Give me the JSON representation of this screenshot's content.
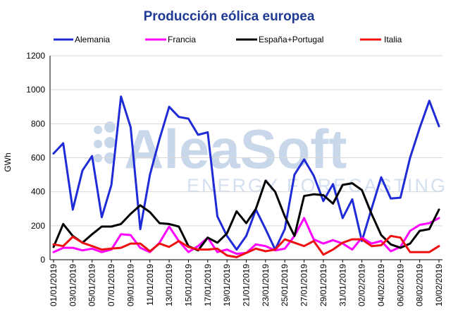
{
  "chart_data": {
    "type": "line",
    "title": "Producción eólica europea",
    "ylabel": "GWh",
    "xlabel": "",
    "ylim": [
      0,
      1200
    ],
    "yticks": [
      0,
      200,
      400,
      600,
      800,
      1000,
      1200
    ],
    "grid": "horizontal",
    "legend_position": "top",
    "watermark": {
      "main": "AleaSoft",
      "sub": "ENERGY FORECASTING"
    },
    "categories": [
      "01/01/2019",
      "02/01/2019",
      "03/01/2019",
      "04/01/2019",
      "05/01/2019",
      "06/01/2019",
      "07/01/2019",
      "08/01/2019",
      "09/01/2019",
      "10/01/2019",
      "11/01/2019",
      "12/01/2019",
      "13/01/2019",
      "14/01/2019",
      "15/01/2019",
      "16/01/2019",
      "17/01/2019",
      "18/01/2019",
      "19/01/2019",
      "20/01/2019",
      "21/01/2019",
      "22/01/2019",
      "23/01/2019",
      "24/01/2019",
      "25/01/2019",
      "26/01/2019",
      "27/01/2019",
      "28/01/2019",
      "29/01/2019",
      "30/01/2019",
      "31/01/2019",
      "01/02/2019",
      "02/02/2019",
      "03/02/2019",
      "04/02/2019",
      "05/02/2019",
      "06/02/2019",
      "07/02/2019",
      "08/02/2019",
      "09/02/2019",
      "10/02/2019"
    ],
    "xtick_labels": [
      "01/01/2019",
      "03/01/2019",
      "05/01/2019",
      "07/01/2019",
      "09/01/2019",
      "11/01/2019",
      "13/01/2019",
      "15/01/2019",
      "17/01/2019",
      "19/01/2019",
      "21/01/2019",
      "23/01/2019",
      "25/01/2019",
      "27/01/2019",
      "29/01/2019",
      "31/01/2019",
      "02/02/2019",
      "04/02/2019",
      "06/02/2019",
      "08/02/2019",
      "10/02/2019"
    ],
    "series": [
      {
        "name": "Alemania",
        "color": "#1f2bd6",
        "values": [
          625,
          685,
          295,
          525,
          610,
          250,
          440,
          960,
          780,
          180,
          500,
          710,
          900,
          840,
          830,
          735,
          750,
          255,
          140,
          60,
          140,
          295,
          180,
          60,
          180,
          500,
          590,
          495,
          345,
          445,
          245,
          355,
          110,
          300,
          485,
          360,
          365,
          600,
          775,
          935,
          785
        ]
      },
      {
        "name": "Francia",
        "color": "#ff00ff",
        "values": [
          45,
          70,
          70,
          55,
          65,
          45,
          60,
          150,
          145,
          70,
          45,
          100,
          195,
          110,
          45,
          80,
          130,
          45,
          60,
          35,
          40,
          90,
          80,
          55,
          65,
          140,
          245,
          120,
          95,
          115,
          95,
          60,
          130,
          95,
          110,
          50,
          75,
          170,
          205,
          215,
          245
        ]
      },
      {
        "name": "España+Portugal",
        "color": "#000000",
        "values": [
          75,
          210,
          140,
          100,
          150,
          195,
          195,
          210,
          270,
          320,
          280,
          215,
          210,
          195,
          80,
          55,
          130,
          100,
          155,
          285,
          215,
          300,
          465,
          400,
          255,
          140,
          375,
          385,
          380,
          330,
          440,
          450,
          410,
          270,
          145,
          90,
          70,
          95,
          170,
          180,
          295
        ]
      },
      {
        "name": "Italia",
        "color": "#ee1111",
        "values": [
          90,
          80,
          135,
          100,
          80,
          60,
          65,
          70,
          95,
          95,
          50,
          95,
          75,
          110,
          75,
          60,
          60,
          65,
          25,
          15,
          40,
          65,
          50,
          60,
          120,
          100,
          80,
          110,
          30,
          60,
          100,
          120,
          120,
          80,
          85,
          140,
          130,
          45,
          45,
          45,
          80
        ]
      }
    ]
  }
}
